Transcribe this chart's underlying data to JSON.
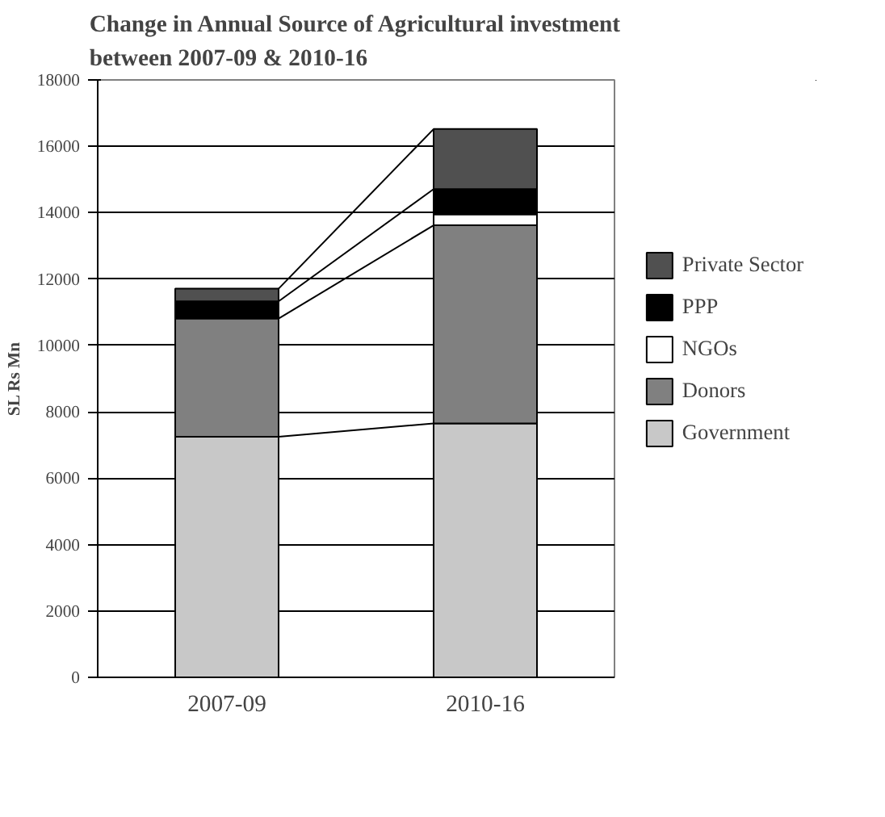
{
  "chart_data": {
    "type": "bar",
    "title": "Change in Annual Source of Agricultural investment between 2007-09 & 2010-16",
    "ylabel": "SL Rs Mn",
    "categories": [
      "2007-09",
      "2010-16"
    ],
    "stacked": true,
    "series": [
      {
        "name": "Government",
        "color": "#c8c8c8",
        "values": [
          7250,
          7650
        ]
      },
      {
        "name": "Donors",
        "color": "#808080",
        "values": [
          3560,
          5970
        ]
      },
      {
        "name": "NGOs",
        "color": "#ffffff",
        "values": [
          null,
          330
        ]
      },
      {
        "name": "PPP",
        "color": "#000000",
        "values": [
          520,
          760
        ]
      },
      {
        "name": "Private Sector",
        "color": "#505050",
        "values": [
          380,
          1810
        ]
      }
    ],
    "ylim": [
      0,
      18000
    ],
    "yticks": [
      0,
      2000,
      4000,
      6000,
      8000,
      10000,
      12000,
      14000,
      16000,
      18000
    ],
    "grid": "y",
    "legend": "right"
  }
}
